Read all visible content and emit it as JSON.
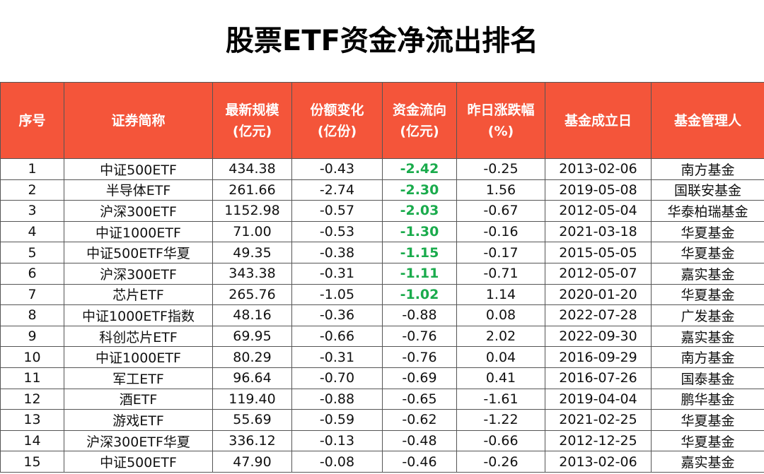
{
  "header": {
    "title": "股票ETF资金净流出排名"
  },
  "table": {
    "columns": [
      "序号",
      "证券简称",
      "最新规模\n(亿元)",
      "份额变化\n(亿份)",
      "资金流向\n(亿元)",
      "昨日涨跌幅\n(%)",
      "基金成立日",
      "基金管理人"
    ],
    "rows": [
      [
        "1",
        "中证500ETF",
        "434.38",
        "-0.43",
        "-2.42",
        "-0.25",
        "2013-02-06",
        "南方基金"
      ],
      [
        "2",
        "半导体ETF",
        "261.66",
        "-2.74",
        "-2.30",
        "1.56",
        "2019-05-08",
        "国联安基金"
      ],
      [
        "3",
        "沪深300ETF",
        "1152.98",
        "-0.57",
        "-2.03",
        "-0.67",
        "2012-05-04",
        "华泰柏瑞基金"
      ],
      [
        "4",
        "中证1000ETF",
        "71.00",
        "-0.53",
        "-1.30",
        "-0.16",
        "2021-03-18",
        "华夏基金"
      ],
      [
        "5",
        "中证500ETF华夏",
        "49.35",
        "-0.38",
        "-1.15",
        "-0.17",
        "2015-05-05",
        "华夏基金"
      ],
      [
        "6",
        "沪深300ETF",
        "343.38",
        "-0.31",
        "-1.11",
        "-0.71",
        "2012-05-07",
        "嘉实基金"
      ],
      [
        "7",
        "芯片ETF",
        "265.76",
        "-1.05",
        "-1.02",
        "1.14",
        "2020-01-20",
        "华夏基金"
      ],
      [
        "8",
        "中证1000ETF指数",
        "48.16",
        "-0.36",
        "-0.88",
        "0.08",
        "2022-07-28",
        "广发基金"
      ],
      [
        "9",
        "科创芯片ETF",
        "69.95",
        "-0.66",
        "-0.76",
        "2.02",
        "2022-09-30",
        "嘉实基金"
      ],
      [
        "10",
        "中证1000ETF",
        "80.29",
        "-0.31",
        "-0.76",
        "0.04",
        "2016-09-29",
        "南方基金"
      ],
      [
        "11",
        "军工ETF",
        "96.64",
        "-0.70",
        "-0.69",
        "0.41",
        "2016-07-26",
        "国泰基金"
      ],
      [
        "12",
        "酒ETF",
        "119.40",
        "-0.88",
        "-0.65",
        "-1.61",
        "2019-04-04",
        "鹏华基金"
      ],
      [
        "13",
        "游戏ETF",
        "55.69",
        "-0.59",
        "-0.62",
        "-1.22",
        "2021-02-25",
        "华夏基金"
      ],
      [
        "14",
        "沪深300ETF华夏",
        "336.12",
        "-0.13",
        "-0.48",
        "-0.66",
        "2012-12-25",
        "华夏基金"
      ],
      [
        "15",
        "中证500ETF",
        "47.90",
        "-0.08",
        "-0.46",
        "-0.26",
        "2013-02-06",
        "嘉实基金"
      ]
    ]
  }
}
